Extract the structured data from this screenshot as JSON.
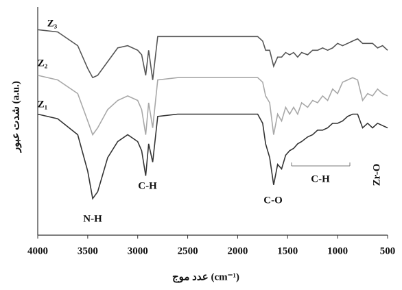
{
  "chart_data": {
    "type": "line",
    "x_label": "عدد موج (cm⁻¹)",
    "y_label": "شدت عبور (a.u.)",
    "x": [
      4000,
      3800,
      3600,
      3500,
      3450,
      3400,
      3300,
      3200,
      3100,
      3000,
      2960,
      2920,
      2890,
      2850,
      2800,
      2600,
      2400,
      2200,
      2000,
      1800,
      1750,
      1720,
      1680,
      1640,
      1600,
      1560,
      1520,
      1480,
      1440,
      1400,
      1360,
      1300,
      1250,
      1200,
      1150,
      1100,
      1050,
      1000,
      950,
      900,
      850,
      800,
      750,
      700,
      650,
      600,
      550,
      500
    ],
    "series": [
      {
        "name": "Z₃",
        "color": "#555555",
        "values": [
          90,
          89,
          83,
          73,
          69,
          70,
          76,
          82,
          83,
          81,
          79,
          70,
          81,
          68,
          87,
          87,
          87,
          87,
          87,
          87,
          85,
          81,
          81,
          74,
          78,
          78,
          80,
          79,
          80,
          78,
          80,
          79,
          81,
          81,
          82,
          81,
          82,
          84,
          83,
          84,
          85,
          86,
          84,
          84,
          84,
          82,
          83,
          81
        ]
      },
      {
        "name": "Z₂",
        "color": "#a8a8a8",
        "values": [
          70,
          68,
          62,
          50,
          44,
          47,
          55,
          59,
          61,
          59,
          55,
          44,
          58,
          47,
          68,
          69,
          69,
          69,
          69,
          69,
          67,
          61,
          58,
          44,
          53,
          50,
          56,
          53,
          56,
          53,
          58,
          56,
          59,
          58,
          61,
          59,
          64,
          62,
          67,
          68,
          69,
          68,
          59,
          62,
          61,
          64,
          62,
          61
        ]
      },
      {
        "name": "Z₁",
        "color": "#333333",
        "values": [
          53,
          51,
          44,
          28,
          16,
          19,
          34,
          41,
          44,
          41,
          37,
          26,
          40,
          32,
          52,
          53,
          53,
          53,
          53,
          53,
          49,
          40,
          34,
          22,
          31,
          29,
          35,
          37,
          38,
          40,
          41,
          43,
          44,
          46,
          46,
          47,
          49,
          49,
          50,
          52,
          53,
          53,
          47,
          49,
          47,
          49,
          48,
          47
        ]
      }
    ],
    "xlim": [
      4000,
      500
    ],
    "ylim": [
      0,
      100
    ],
    "xticks": [
      4000,
      3500,
      3000,
      2500,
      2000,
      1500,
      1000,
      500
    ],
    "annotations": [
      "N-H",
      "C-H",
      "C-O",
      "C-H",
      "Zr-O"
    ]
  }
}
